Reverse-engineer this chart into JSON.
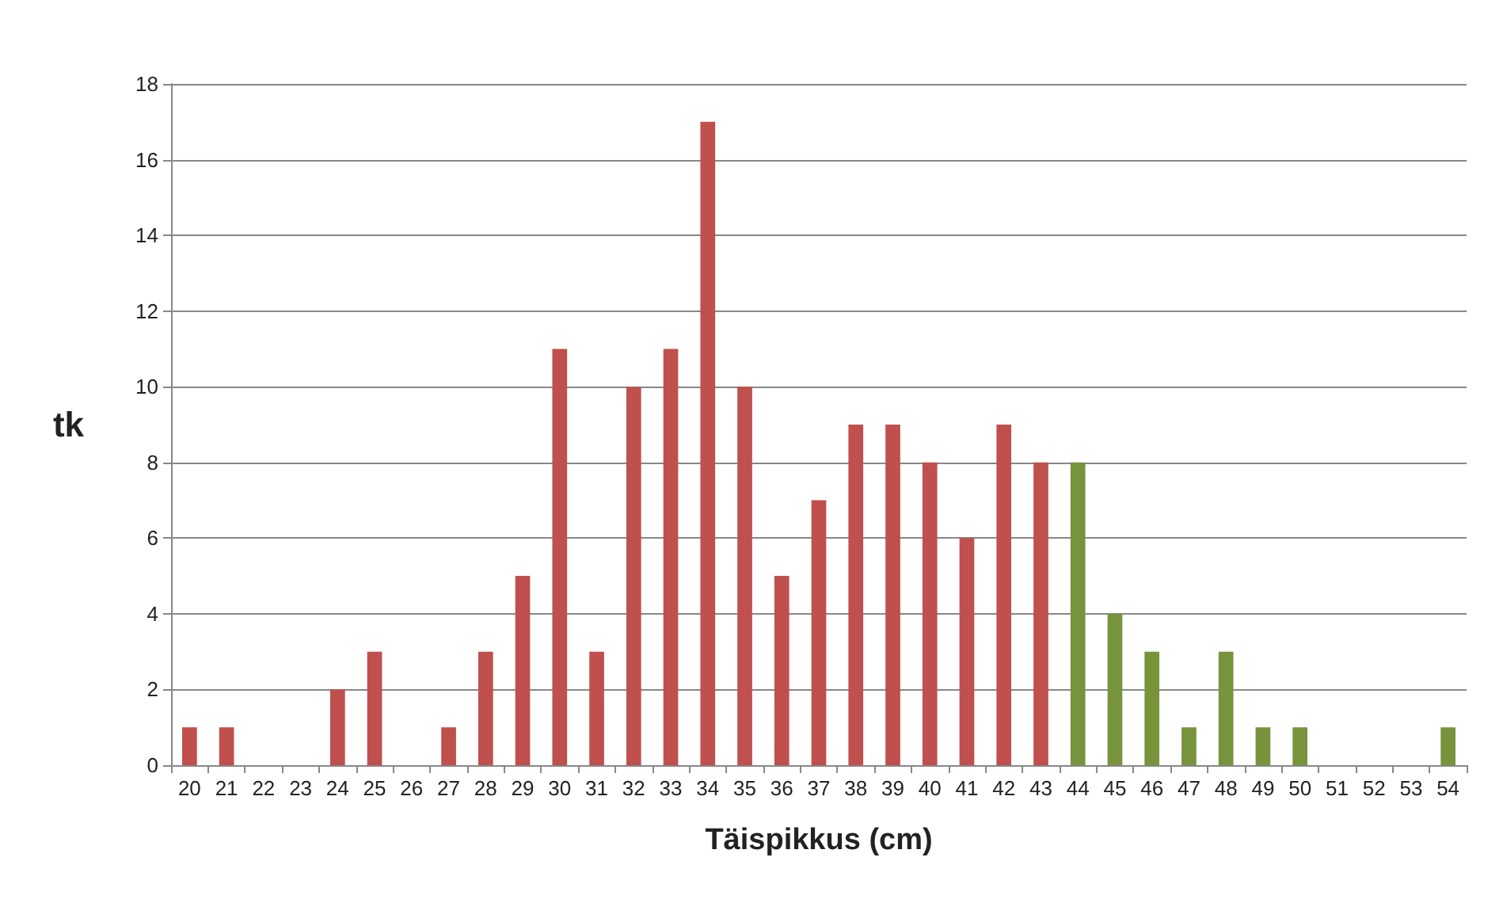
{
  "chart_data": {
    "type": "bar",
    "xlabel": "Täispikkus (cm)",
    "ylabel": "tk",
    "categories": [
      "20",
      "21",
      "22",
      "23",
      "24",
      "25",
      "26",
      "27",
      "28",
      "29",
      "30",
      "31",
      "32",
      "33",
      "34",
      "35",
      "36",
      "37",
      "38",
      "39",
      "40",
      "41",
      "42",
      "43",
      "44",
      "45",
      "46",
      "47",
      "48",
      "49",
      "50",
      "51",
      "52",
      "53",
      "54"
    ],
    "values": [
      1,
      1,
      0,
      0,
      2,
      3,
      0,
      1,
      3,
      5,
      11,
      3,
      10,
      11,
      17,
      10,
      5,
      7,
      9,
      9,
      8,
      6,
      9,
      8,
      8,
      4,
      3,
      1,
      3,
      1,
      1,
      0,
      0,
      0,
      1
    ],
    "colors": [
      "#c0504d",
      "#c0504d",
      "#c0504d",
      "#c0504d",
      "#c0504d",
      "#c0504d",
      "#c0504d",
      "#c0504d",
      "#c0504d",
      "#c0504d",
      "#c0504d",
      "#c0504d",
      "#c0504d",
      "#c0504d",
      "#c0504d",
      "#c0504d",
      "#c0504d",
      "#c0504d",
      "#c0504d",
      "#c0504d",
      "#c0504d",
      "#c0504d",
      "#c0504d",
      "#c0504d",
      "#77933c",
      "#77933c",
      "#77933c",
      "#77933c",
      "#77933c",
      "#77933c",
      "#77933c",
      "#77933c",
      "#77933c",
      "#77933c",
      "#77933c"
    ],
    "ylim": [
      0,
      18
    ],
    "yticks": [
      0,
      2,
      4,
      6,
      8,
      10,
      12,
      14,
      16,
      18
    ],
    "grid": "y"
  }
}
